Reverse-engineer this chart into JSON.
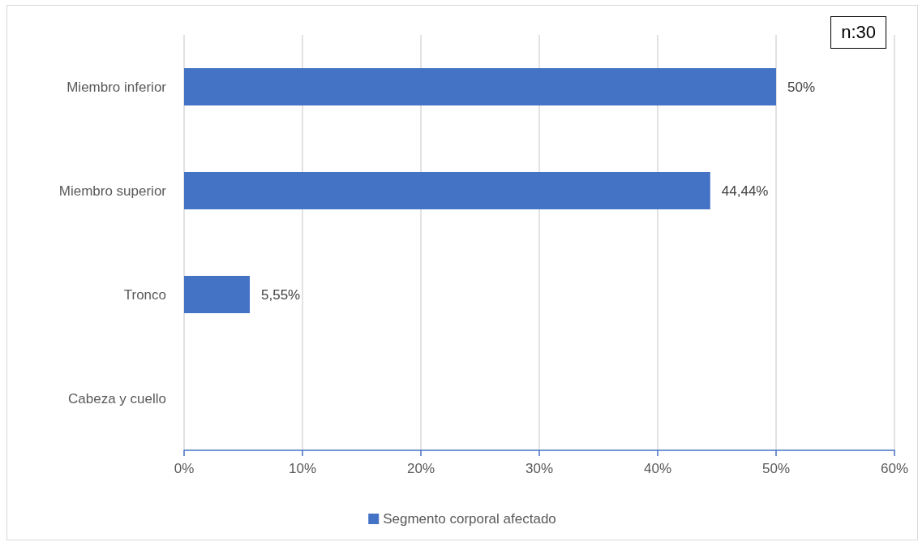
{
  "chart_data": {
    "type": "bar",
    "orientation": "horizontal",
    "categories": [
      "Miembro inferior",
      "Miembro superior",
      "Tronco",
      "Cabeza y cuello"
    ],
    "series": [
      {
        "name": "Segmento corporal afectado",
        "color": "#4472c4",
        "values": [
          50,
          44.44,
          5.55,
          0
        ],
        "value_labels": [
          "50%",
          "44,44%",
          "5,55%",
          null
        ]
      }
    ],
    "xlim": [
      0,
      60
    ],
    "xticks": [
      {
        "value": 0,
        "label": "0%"
      },
      {
        "value": 10,
        "label": "10%"
      },
      {
        "value": 20,
        "label": "20%"
      },
      {
        "value": 30,
        "label": "30%"
      },
      {
        "value": 40,
        "label": "40%"
      },
      {
        "value": 50,
        "label": "50%"
      },
      {
        "value": 60,
        "label": "60%"
      }
    ],
    "grid": "x",
    "legend": "bottom",
    "annotations": [
      "n:30"
    ]
  }
}
